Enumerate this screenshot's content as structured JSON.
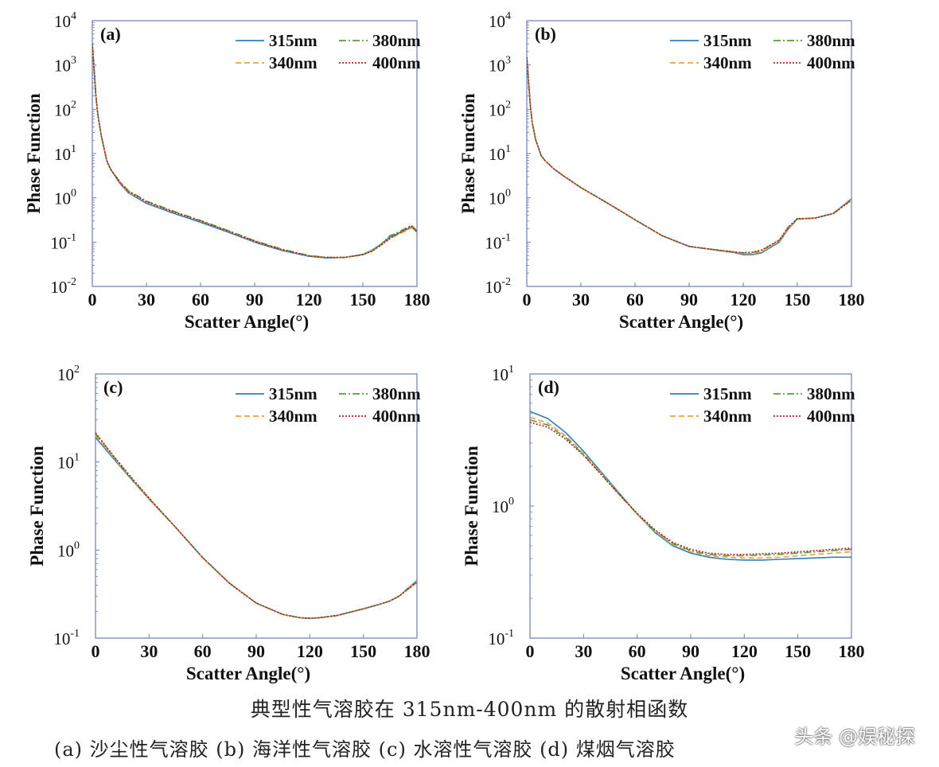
{
  "colors": {
    "315nm": "#2e7fc2",
    "340nm": "#f0a040",
    "380nm": "#5f9a3a",
    "400nm": "#b22222",
    "axis": "#6b7fb3"
  },
  "legend_labels": [
    "315nm",
    "380nm",
    "340nm",
    "400nm"
  ],
  "caption": {
    "title": "典型性气溶胶在 315nm-400nm 的散射相函数",
    "subtitle": "(a) 沙尘性气溶胶 (b) 海洋性气溶胶 (c) 水溶性气溶胶 (d) 煤烟气溶胶",
    "watermark": "头条 @娱秘探"
  },
  "chart_data": [
    {
      "type": "line",
      "panel": "(a)",
      "xlabel": "Scatter Angle(°)",
      "ylabel": "Phase Function",
      "xlim": [
        0,
        180
      ],
      "xticks": [
        0,
        30,
        60,
        90,
        120,
        150,
        180
      ],
      "yscale": "log",
      "ylim_exp": [
        -2,
        4
      ],
      "yticks_exp": [
        -2,
        -1,
        0,
        1,
        2,
        3,
        4
      ],
      "legend_placement": "top-right",
      "x": [
        0,
        1,
        2,
        3,
        5,
        8,
        10,
        15,
        20,
        30,
        45,
        60,
        75,
        90,
        105,
        120,
        130,
        140,
        150,
        155,
        160,
        165,
        170,
        175,
        177,
        180
      ],
      "series": [
        {
          "name": "315nm",
          "values": [
            3000,
            800,
            200,
            80,
            25,
            7,
            4.5,
            2.2,
            1.3,
            0.75,
            0.45,
            0.28,
            0.17,
            0.1,
            0.065,
            0.048,
            0.044,
            0.045,
            0.053,
            0.065,
            0.09,
            0.13,
            0.16,
            0.2,
            0.22,
            0.17
          ]
        },
        {
          "name": "340nm",
          "values": [
            3000,
            800,
            200,
            80,
            25,
            7,
            4.5,
            2.3,
            1.35,
            0.8,
            0.48,
            0.3,
            0.18,
            0.105,
            0.068,
            0.049,
            0.045,
            0.045,
            0.052,
            0.062,
            0.085,
            0.12,
            0.15,
            0.19,
            0.21,
            0.17
          ]
        },
        {
          "name": "380nm",
          "values": [
            3000,
            800,
            200,
            80,
            25,
            7,
            4.6,
            2.4,
            1.45,
            0.85,
            0.5,
            0.31,
            0.185,
            0.108,
            0.07,
            0.05,
            0.045,
            0.045,
            0.052,
            0.064,
            0.09,
            0.14,
            0.17,
            0.22,
            0.24,
            0.18
          ]
        },
        {
          "name": "400nm",
          "values": [
            3000,
            800,
            200,
            80,
            25,
            7,
            4.5,
            2.3,
            1.4,
            0.82,
            0.48,
            0.3,
            0.18,
            0.105,
            0.068,
            0.049,
            0.045,
            0.045,
            0.052,
            0.062,
            0.085,
            0.12,
            0.16,
            0.21,
            0.23,
            0.17
          ]
        }
      ]
    },
    {
      "type": "line",
      "panel": "(b)",
      "xlabel": "Scatter Angle(°)",
      "ylabel": "Phase Function",
      "xlim": [
        0,
        180
      ],
      "xticks": [
        0,
        30,
        60,
        90,
        120,
        150,
        180
      ],
      "yscale": "log",
      "ylim_exp": [
        -2,
        4
      ],
      "yticks_exp": [
        -2,
        -1,
        0,
        1,
        2,
        3,
        4
      ],
      "legend_placement": "top-right",
      "x": [
        0,
        1,
        2,
        3,
        5,
        8,
        10,
        15,
        20,
        30,
        45,
        60,
        75,
        90,
        105,
        115,
        120,
        125,
        130,
        140,
        145,
        150,
        155,
        160,
        170,
        180
      ],
      "series": [
        {
          "name": "315nm",
          "values": [
            1500,
            400,
            120,
            50,
            20,
            9,
            7,
            4.5,
            3.2,
            1.7,
            0.75,
            0.32,
            0.14,
            0.08,
            0.066,
            0.058,
            0.052,
            0.052,
            0.057,
            0.1,
            0.2,
            0.33,
            0.34,
            0.35,
            0.45,
            0.95
          ]
        },
        {
          "name": "340nm",
          "values": [
            1500,
            400,
            120,
            50,
            20,
            9,
            7,
            4.5,
            3.2,
            1.7,
            0.75,
            0.32,
            0.14,
            0.08,
            0.066,
            0.059,
            0.055,
            0.055,
            0.06,
            0.105,
            0.21,
            0.33,
            0.34,
            0.35,
            0.45,
            0.92
          ]
        },
        {
          "name": "380nm",
          "values": [
            1500,
            400,
            120,
            50,
            20,
            9,
            7,
            4.5,
            3.2,
            1.7,
            0.75,
            0.32,
            0.14,
            0.08,
            0.067,
            0.06,
            0.057,
            0.058,
            0.064,
            0.11,
            0.22,
            0.34,
            0.34,
            0.35,
            0.44,
            0.9
          ]
        },
        {
          "name": "400nm",
          "values": [
            1500,
            400,
            120,
            50,
            20,
            9,
            7,
            4.5,
            3.2,
            1.7,
            0.75,
            0.32,
            0.14,
            0.08,
            0.067,
            0.06,
            0.058,
            0.059,
            0.066,
            0.112,
            0.22,
            0.34,
            0.34,
            0.35,
            0.44,
            0.88
          ]
        }
      ]
    },
    {
      "type": "line",
      "panel": "(c)",
      "xlabel": "Scatter Angle(°)",
      "ylabel": "Phase Function",
      "xlim": [
        0,
        180
      ],
      "xticks": [
        0,
        30,
        60,
        90,
        120,
        150,
        180
      ],
      "yscale": "log",
      "ylim_exp": [
        -1,
        2
      ],
      "yticks_exp": [
        -1,
        0,
        1,
        2
      ],
      "legend_placement": "top-right",
      "x": [
        0,
        10,
        20,
        30,
        45,
        60,
        75,
        90,
        105,
        115,
        120,
        125,
        135,
        150,
        160,
        165,
        170,
        175,
        180
      ],
      "series": [
        {
          "name": "315nm",
          "values": [
            19,
            11,
            6.4,
            3.8,
            1.8,
            0.82,
            0.42,
            0.25,
            0.185,
            0.17,
            0.168,
            0.17,
            0.18,
            0.215,
            0.245,
            0.265,
            0.3,
            0.37,
            0.45
          ]
        },
        {
          "name": "340nm",
          "values": [
            20,
            11.3,
            6.5,
            3.8,
            1.8,
            0.82,
            0.42,
            0.25,
            0.185,
            0.17,
            0.168,
            0.17,
            0.18,
            0.215,
            0.245,
            0.265,
            0.3,
            0.37,
            0.44
          ]
        },
        {
          "name": "380nm",
          "values": [
            21,
            11.6,
            6.6,
            3.85,
            1.8,
            0.82,
            0.42,
            0.25,
            0.185,
            0.17,
            0.168,
            0.17,
            0.18,
            0.215,
            0.245,
            0.265,
            0.3,
            0.36,
            0.43
          ]
        },
        {
          "name": "400nm",
          "values": [
            21.5,
            11.8,
            6.7,
            3.9,
            1.8,
            0.82,
            0.42,
            0.25,
            0.185,
            0.17,
            0.168,
            0.17,
            0.18,
            0.215,
            0.245,
            0.265,
            0.3,
            0.36,
            0.43
          ]
        }
      ]
    },
    {
      "type": "line",
      "panel": "(d)",
      "xlabel": "Scatter Angle(°)",
      "ylabel": "Phase Function",
      "xlim": [
        0,
        180
      ],
      "xticks": [
        0,
        30,
        60,
        90,
        120,
        150,
        180
      ],
      "yscale": "log",
      "ylim_exp": [
        -1,
        1
      ],
      "yticks_exp": [
        -1,
        0,
        1
      ],
      "legend_placement": "top-right",
      "x": [
        0,
        10,
        20,
        30,
        40,
        50,
        60,
        70,
        80,
        90,
        100,
        110,
        120,
        130,
        140,
        150,
        160,
        170,
        180
      ],
      "series": [
        {
          "name": "315nm",
          "values": [
            5.2,
            4.6,
            3.6,
            2.6,
            1.8,
            1.25,
            0.87,
            0.63,
            0.5,
            0.44,
            0.41,
            0.395,
            0.39,
            0.39,
            0.395,
            0.4,
            0.405,
            0.41,
            0.41
          ]
        },
        {
          "name": "340nm",
          "values": [
            4.7,
            4.25,
            3.4,
            2.5,
            1.76,
            1.23,
            0.87,
            0.64,
            0.51,
            0.45,
            0.42,
            0.41,
            0.405,
            0.405,
            0.41,
            0.42,
            0.43,
            0.44,
            0.45
          ]
        },
        {
          "name": "380nm",
          "values": [
            4.5,
            4.1,
            3.3,
            2.45,
            1.74,
            1.22,
            0.87,
            0.65,
            0.52,
            0.46,
            0.43,
            0.42,
            0.42,
            0.425,
            0.43,
            0.44,
            0.45,
            0.46,
            0.47
          ]
        },
        {
          "name": "400nm",
          "values": [
            4.3,
            3.95,
            3.2,
            2.42,
            1.72,
            1.22,
            0.88,
            0.66,
            0.53,
            0.47,
            0.44,
            0.43,
            0.43,
            0.435,
            0.44,
            0.45,
            0.46,
            0.47,
            0.48
          ]
        }
      ]
    }
  ]
}
